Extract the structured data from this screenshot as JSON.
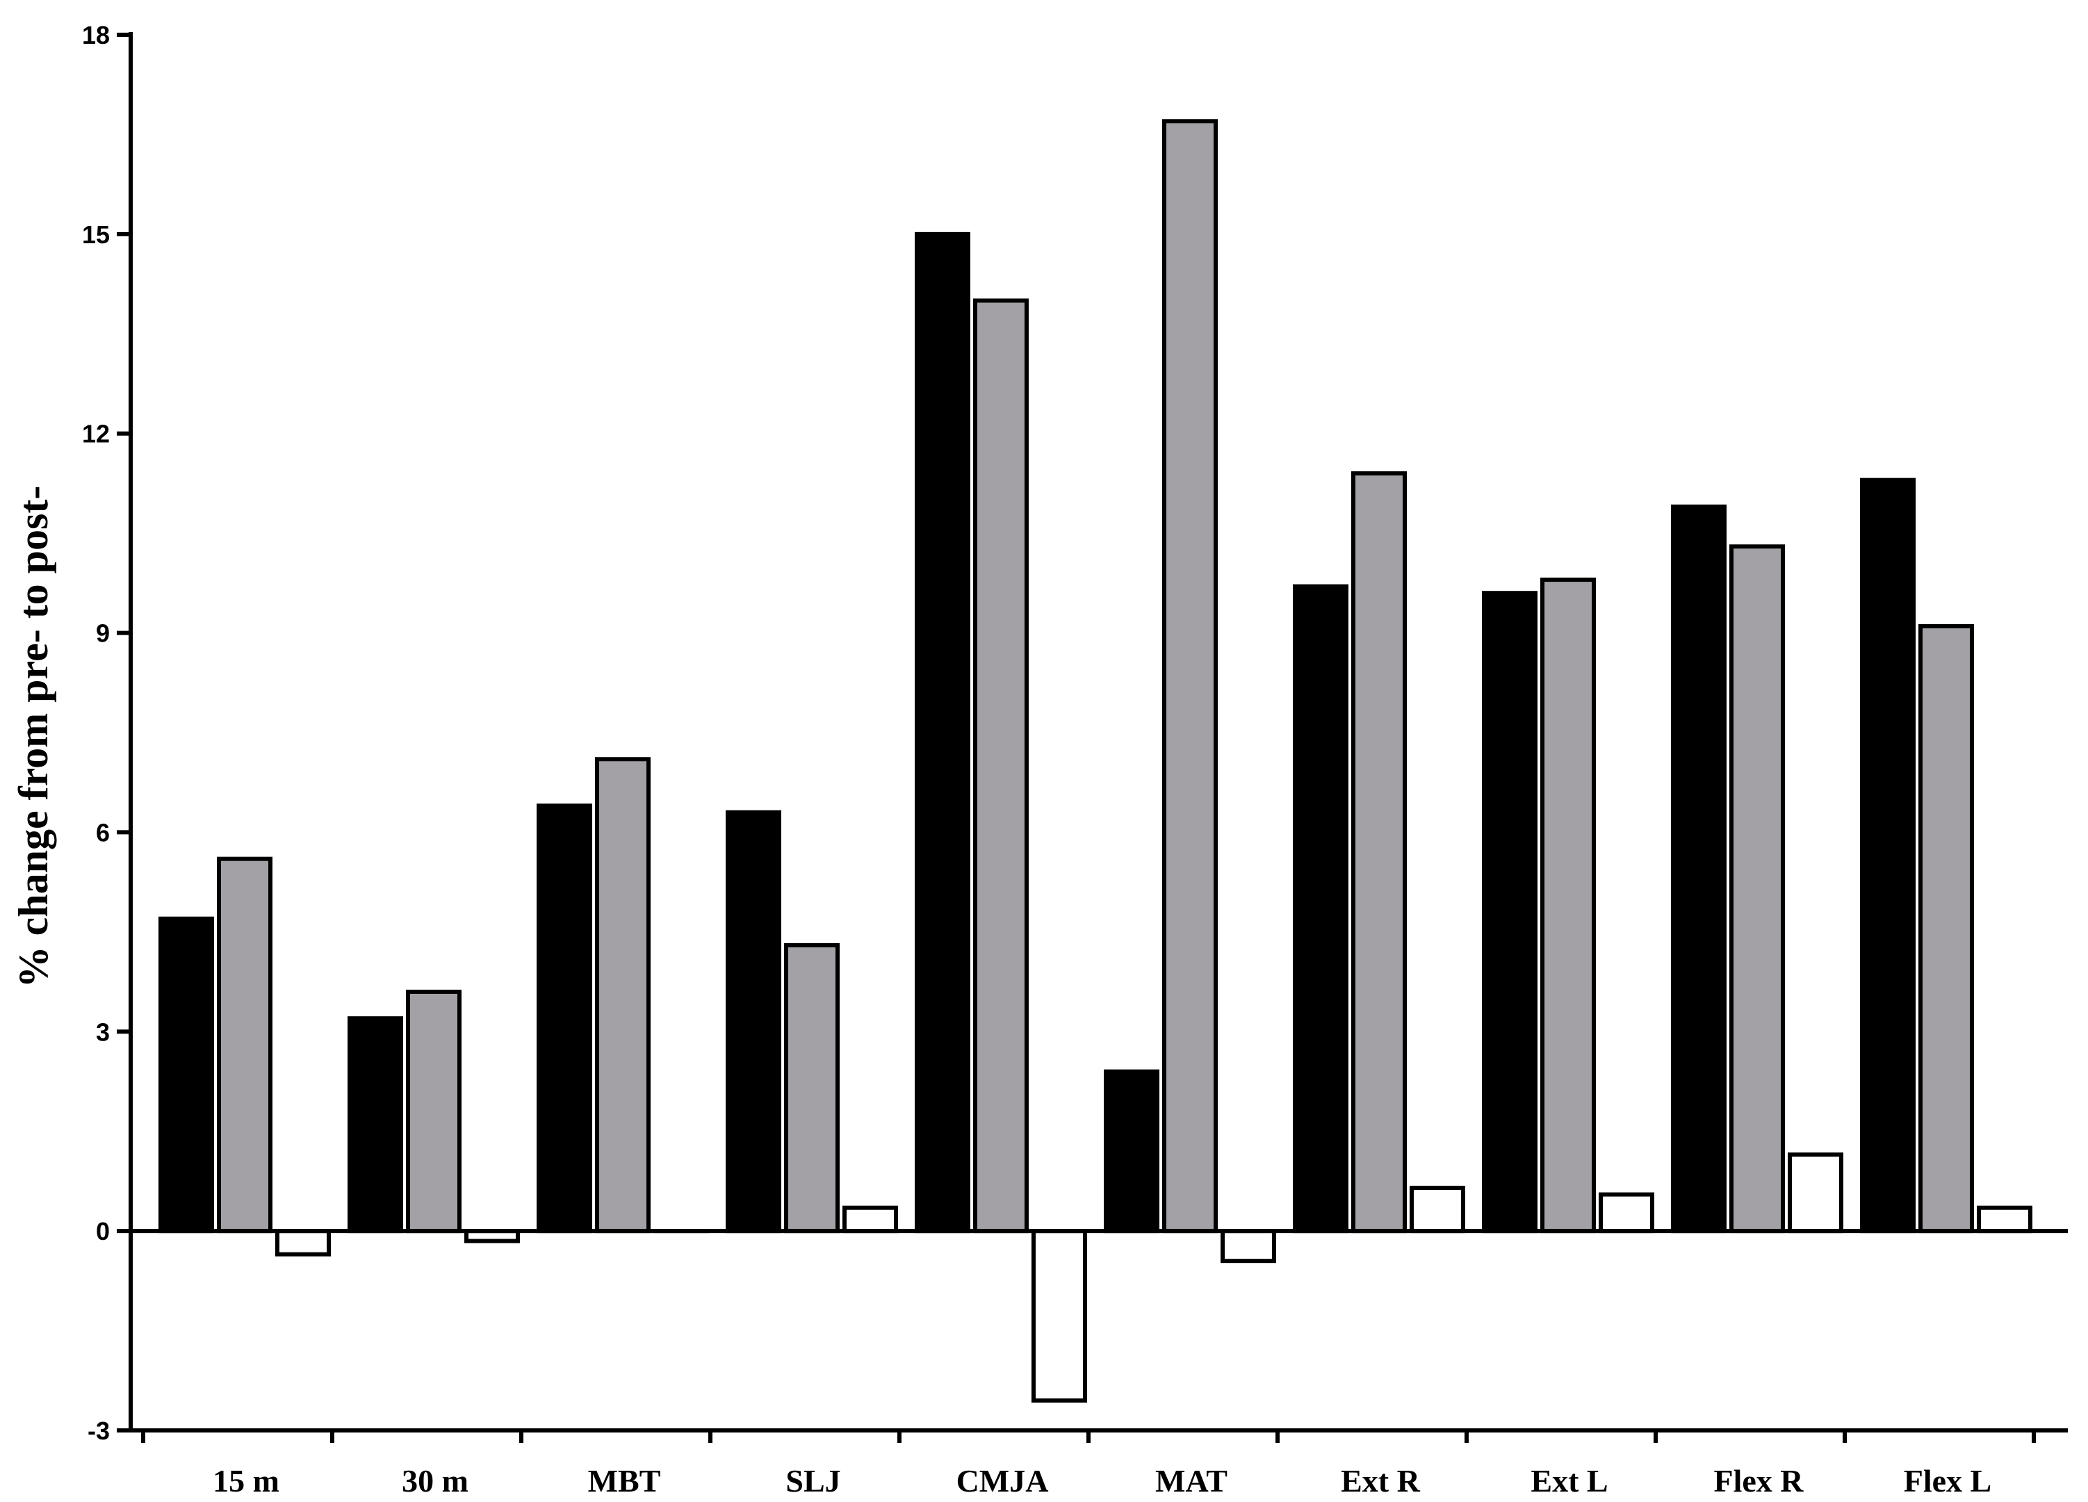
{
  "chart_data": {
    "type": "bar",
    "title": "",
    "xlabel": "",
    "ylabel": "% change from pre- to post-",
    "ylim": [
      -3,
      18
    ],
    "yticks": [
      -3,
      0,
      3,
      6,
      9,
      12,
      15,
      18
    ],
    "ytick_labels": [
      "-3",
      "0",
      "3",
      "6",
      "9",
      "12",
      "15",
      "18"
    ],
    "categories": [
      "15 m",
      "30 m",
      "MBT",
      "SLJ",
      "CMJA",
      "MAT",
      "Ext R",
      "Ext L",
      "Flex R",
      "Flex L"
    ],
    "series": [
      {
        "color": "#000000",
        "values": [
          4.7,
          3.2,
          6.4,
          6.3,
          15.0,
          2.4,
          9.7,
          9.6,
          10.9,
          11.3
        ]
      },
      {
        "color": "#a3a1a6",
        "values": [
          5.6,
          3.6,
          7.1,
          4.3,
          14.0,
          16.7,
          11.4,
          9.8,
          10.3,
          9.1
        ]
      },
      {
        "color": "#ffffff",
        "values": [
          -0.35,
          -0.15,
          0.0,
          0.35,
          -2.55,
          -0.45,
          0.65,
          0.55,
          1.15,
          0.35
        ]
      }
    ],
    "grid": false,
    "legend": "none"
  }
}
